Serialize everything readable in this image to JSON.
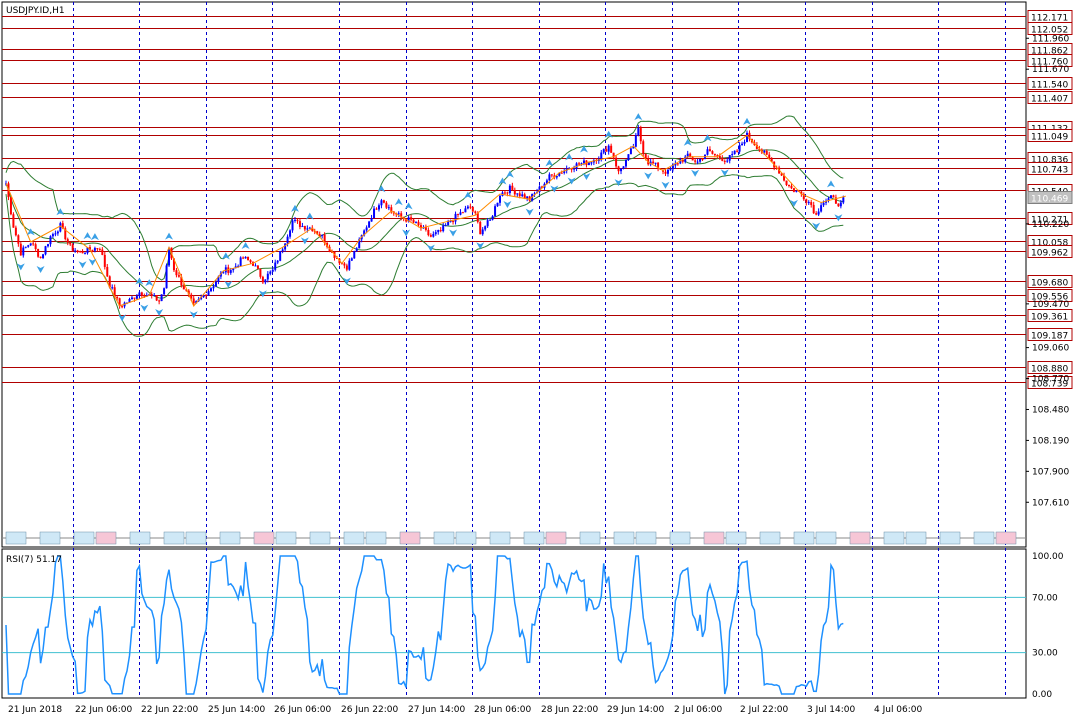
{
  "chart_data": {
    "type": "candlestick",
    "title": "USDJPY.ID,H1",
    "price_axis": {
      "range": [
        107.35,
        112.3
      ],
      "ticks": [
        "111.960",
        "111.670",
        "110.220",
        "109.470",
        "109.060",
        "108.770",
        "108.480",
        "108.190",
        "107.900",
        "107.610"
      ]
    },
    "levels": [
      {
        "label": "112.171",
        "value": 112.171
      },
      {
        "label": "112.052",
        "value": 112.052
      },
      {
        "label": "111.862",
        "value": 111.862
      },
      {
        "label": "111.760",
        "value": 111.76
      },
      {
        "label": "111.540",
        "value": 111.54
      },
      {
        "label": "111.407",
        "value": 111.407
      },
      {
        "label": "111.132",
        "value": 111.132
      },
      {
        "label": "111.049",
        "value": 111.049
      },
      {
        "label": "110.836",
        "value": 110.836
      },
      {
        "label": "110.743",
        "value": 110.743
      },
      {
        "label": "110.540",
        "value": 110.54
      },
      {
        "label": "110.271",
        "value": 110.271
      },
      {
        "label": "110.058",
        "value": 110.058
      },
      {
        "label": "109.962",
        "value": 109.962
      },
      {
        "label": "109.680",
        "value": 109.68
      },
      {
        "label": "109.556",
        "value": 109.556
      },
      {
        "label": "109.361",
        "value": 109.361
      },
      {
        "label": "109.187",
        "value": 109.187
      },
      {
        "label": "108.880",
        "value": 108.88
      },
      {
        "label": "108.739",
        "value": 108.739
      }
    ],
    "current_price": {
      "label": "110.469",
      "value": 110.469
    },
    "time_labels": [
      "21 Jun 2018",
      "22 Jun 06:00",
      "22 Jun 22:00",
      "25 Jun 14:00",
      "26 Jun 06:00",
      "26 Jun 22:00",
      "27 Jun 14:00",
      "28 Jun 06:00",
      "28 Jun 22:00",
      "29 Jun 14:00",
      "2 Jul 06:00",
      "2 Jul 22:00",
      "3 Jul 14:00",
      "4 Jul 06:00"
    ],
    "close_keypoints": [
      [
        0,
        110.6
      ],
      [
        3,
        110.2
      ],
      [
        6,
        109.95
      ],
      [
        10,
        110.05
      ],
      [
        14,
        109.9
      ],
      [
        18,
        110.1
      ],
      [
        22,
        110.2
      ],
      [
        26,
        110.0
      ],
      [
        30,
        109.95
      ],
      [
        34,
        109.98
      ],
      [
        38,
        110.0
      ],
      [
        42,
        109.65
      ],
      [
        46,
        109.45
      ],
      [
        50,
        109.5
      ],
      [
        54,
        109.58
      ],
      [
        58,
        109.55
      ],
      [
        62,
        109.5
      ],
      [
        64,
        109.62
      ],
      [
        66,
        110.0
      ],
      [
        68,
        109.8
      ],
      [
        72,
        109.62
      ],
      [
        76,
        109.45
      ],
      [
        80,
        109.55
      ],
      [
        84,
        109.65
      ],
      [
        88,
        109.78
      ],
      [
        92,
        109.8
      ],
      [
        96,
        109.9
      ],
      [
        100,
        109.85
      ],
      [
        104,
        109.7
      ],
      [
        108,
        109.78
      ],
      [
        112,
        110.0
      ],
      [
        116,
        110.25
      ],
      [
        120,
        110.2
      ],
      [
        124,
        110.18
      ],
      [
        128,
        110.1
      ],
      [
        132,
        109.95
      ],
      [
        136,
        109.85
      ],
      [
        138,
        109.82
      ],
      [
        140,
        109.9
      ],
      [
        144,
        110.1
      ],
      [
        148,
        110.3
      ],
      [
        152,
        110.46
      ],
      [
        156,
        110.34
      ],
      [
        160,
        110.28
      ],
      [
        164,
        110.25
      ],
      [
        168,
        110.18
      ],
      [
        172,
        110.1
      ],
      [
        176,
        110.15
      ],
      [
        180,
        110.25
      ],
      [
        184,
        110.32
      ],
      [
        188,
        110.38
      ],
      [
        190,
        110.3
      ],
      [
        192,
        110.15
      ],
      [
        196,
        110.25
      ],
      [
        200,
        110.5
      ],
      [
        204,
        110.55
      ],
      [
        208,
        110.5
      ],
      [
        212,
        110.45
      ],
      [
        216,
        110.55
      ],
      [
        220,
        110.66
      ],
      [
        224,
        110.7
      ],
      [
        228,
        110.75
      ],
      [
        232,
        110.78
      ],
      [
        236,
        110.8
      ],
      [
        240,
        110.85
      ],
      [
        244,
        110.95
      ],
      [
        246,
        110.85
      ],
      [
        248,
        110.7
      ],
      [
        252,
        110.85
      ],
      [
        254,
        110.95
      ],
      [
        256,
        111.1
      ],
      [
        258,
        110.9
      ],
      [
        260,
        110.8
      ],
      [
        262,
        110.78
      ],
      [
        264,
        110.75
      ],
      [
        266,
        110.72
      ],
      [
        268,
        110.7
      ],
      [
        272,
        110.8
      ],
      [
        276,
        110.85
      ],
      [
        280,
        110.8
      ],
      [
        284,
        110.9
      ],
      [
        288,
        110.85
      ],
      [
        292,
        110.82
      ],
      [
        296,
        110.9
      ],
      [
        300,
        111.05
      ],
      [
        304,
        110.95
      ],
      [
        308,
        110.85
      ],
      [
        312,
        110.75
      ],
      [
        316,
        110.6
      ],
      [
        318,
        110.55
      ],
      [
        322,
        110.5
      ],
      [
        326,
        110.4
      ],
      [
        328,
        110.3
      ],
      [
        330,
        110.42
      ],
      [
        334,
        110.46
      ],
      [
        338,
        110.4
      ],
      [
        340,
        110.48
      ]
    ],
    "rsi": {
      "label": "RSI(7) 51.17",
      "period": 7,
      "value": 51.17,
      "levels": [
        30,
        70
      ],
      "ticks": [
        "100.00",
        "70.00",
        "30.00",
        "0.00"
      ],
      "range": [
        0,
        100
      ]
    }
  }
}
